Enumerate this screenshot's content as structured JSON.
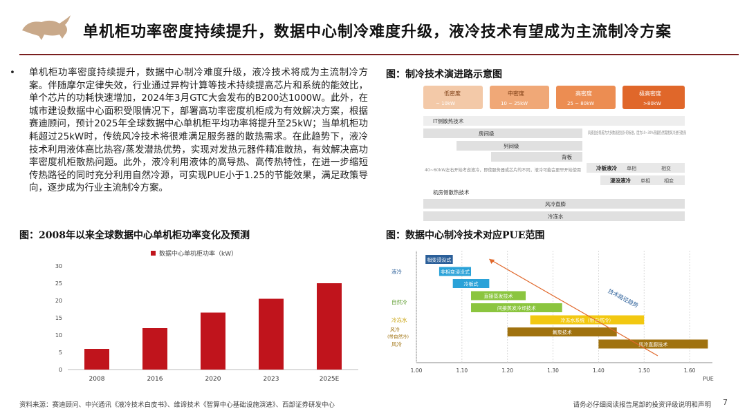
{
  "header": {
    "title": "单机柜功率密度持续提升，数据中心制冷难度升级，液冷技术有望成为主流制冷方案"
  },
  "bullet": {
    "symbol": "•",
    "text": "单机柜功率密度持续提升，数据中心制冷难度升级，液冷技术将成为主流制冷方案。伴随摩尔定律失效，行业通过异构计算等技术持续提高芯片和系统的能效比，单个芯片的功耗快速增加，2024年3月GTC大会发布的B200达1000W。此外，在城市建设数据中心面积受限情况下，部署高功率密度机柜成为有效解决方案，根据赛迪顾问，预计2025年全球数据中心单机柜平均功率将提升至25kW；当单机柜功耗超过25kW时，传统风冷技术将很难满足服务器的散热需求。在此趋势下，液冷技术利用液体高比热容/蒸发潜热优势，实现对发热元器件精准散热，有效解决高功率密度机柜散热问题。此外，液冷利用液体的高导热、高传热特性，在进一步缩短传热路径的同时充分利用自然冷源，可实现PUE小于1.25的节能效果，满足政策导向，逐步成为行业主流制冷方案。"
  },
  "figures": {
    "evolution_caption": "图：制冷技术演进路示意图",
    "bar_caption": "图：2008年以来全球数据中心单机柜功率变化及预测",
    "pue_caption": "图：数据中心制冷技术对应PUE范围"
  },
  "evolution": {
    "levels": [
      {
        "label": "低密度",
        "range": "~ 10kW",
        "color": "#f3c9a8"
      },
      {
        "label": "中密度",
        "range": "10 ~ 25kW",
        "color": "#f0a877"
      },
      {
        "label": "高密度",
        "range": "25 ~ 80kW",
        "color": "#ec8d52"
      },
      {
        "label": "极高密度",
        "range": ">80kW",
        "color": "#e0672a"
      }
    ],
    "it_section": "IT侧散热技术",
    "room_level": "房间级",
    "row_level": "列间级",
    "back_panel": "背板",
    "mix_note": "风液混合将成为大多数高密设计的标准，因为10~30%热量仍然需要风冷进行散热",
    "liquid_note": "40~60kW左右开始考虑液冷，即使服务器或芯片的不同，液冷可能会更早开始使用",
    "cold_plate": "冷板液冷",
    "cold_plate_tags": [
      "单相",
      "相变"
    ],
    "immersion": "浸没液冷",
    "immersion_tags": [
      "单相",
      "相变"
    ],
    "room_section": "机房侧散热技术",
    "air_cooling": "风冷直膨",
    "chilled_water": "冷冻水"
  },
  "colors": {
    "accent": "#7a1f1f",
    "bar": "#c0141c",
    "pue_blue": "#2b5f99",
    "pue_cyan": "#2aa2d8",
    "pue_green": "#8bc53f",
    "pue_yellow": "#f2c811",
    "pue_brown": "#a0720f",
    "pue_arrow": "#e0672a"
  },
  "chart_data": [
    {
      "type": "bar",
      "title": "",
      "legend": "数据中心单机柜功率（kW）",
      "categories": [
        "2008",
        "2016",
        "2020",
        "2023",
        "2025E"
      ],
      "values": [
        6,
        12,
        16.5,
        20.5,
        25
      ],
      "ylim": [
        0,
        30
      ],
      "yticks": [
        0,
        5,
        10,
        15,
        20,
        25,
        30
      ],
      "grid": false,
      "legend_position": "top"
    },
    {
      "type": "bar",
      "subtype": "range",
      "xlabel": "PUE",
      "xlim": [
        1.0,
        1.65
      ],
      "xticks": [
        "1.00",
        "1.10",
        "1.20",
        "1.30",
        "1.40",
        "1.50",
        "1.60"
      ],
      "groups": [
        "液冷",
        "自然冷",
        "冷冻水",
        "风冷（带自然冷）",
        "风冷"
      ],
      "bars": [
        {
          "label": "相变浸没式",
          "group": "液冷",
          "start": 1.02,
          "end": 1.08
        },
        {
          "label": "非相变浸没式",
          "group": "液冷",
          "start": 1.05,
          "end": 1.12
        },
        {
          "label": "冷板式",
          "group": "液冷",
          "start": 1.08,
          "end": 1.16
        },
        {
          "label": "直接蒸发技术",
          "group": "自然冷",
          "start": 1.12,
          "end": 1.24
        },
        {
          "label": "间接蒸发冷却技术",
          "group": "自然冷",
          "start": 1.12,
          "end": 1.32
        },
        {
          "label": "冷冻水系统（带自然冷）",
          "group": "冷冻水",
          "start": 1.25,
          "end": 1.5
        },
        {
          "label": "氟泵技术",
          "group": "风冷（带自然冷）",
          "start": 1.2,
          "end": 1.44
        },
        {
          "label": "风冷直膨技术",
          "group": "风冷",
          "start": 1.4,
          "end": 1.64
        }
      ],
      "annotation": "技术路径趋势"
    }
  ],
  "footer": {
    "source": "资料来源：赛迪顾问、中兴通讯《液冷技术白皮书》、维谛技术《智算中心基础设施演进》、西部证券研发中心",
    "disclaimer": "请务必仔细阅读报告尾部的投资评级说明和声明",
    "page": "7"
  }
}
